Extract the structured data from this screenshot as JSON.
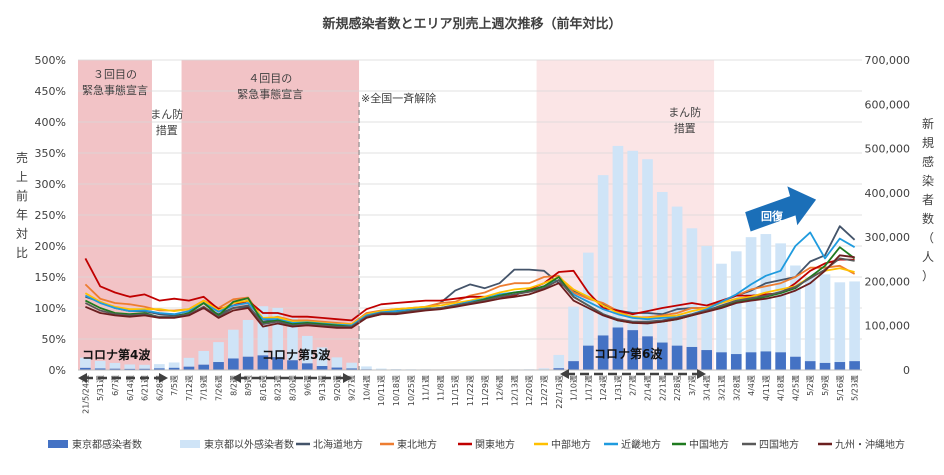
{
  "chart_data": {
    "type": "bar+line",
    "title": "新規感染者数とエリア別売上週次推移（前年対比）",
    "ylabel_left": "売上前年対比",
    "ylabel_right": "新規感染者数（人）",
    "yleft_range": [
      0,
      500
    ],
    "yleft_ticks": [
      "0%",
      "50%",
      "100%",
      "150%",
      "200%",
      "250%",
      "300%",
      "350%",
      "400%",
      "450%",
      "500%"
    ],
    "yright_range": [
      0,
      700000
    ],
    "yright_ticks": [
      "0",
      "100,000",
      "200,000",
      "300,000",
      "400,000",
      "500,000",
      "600,000",
      "700,000"
    ],
    "x_labels": [
      "21/5/24週",
      "5/31週",
      "6/7週",
      "6/14週",
      "6/21週",
      "6/28週",
      "7/5週",
      "7/12週",
      "7/19週",
      "7/26週",
      "8/2週",
      "8/9週",
      "8/16週",
      "8/23週",
      "8/30週",
      "9/6週",
      "9/13週",
      "9/20週",
      "9/27週",
      "10/4週",
      "10/11週",
      "10/18週",
      "10/25週",
      "11/1週",
      "11/8週",
      "11/15週",
      "11/22週",
      "11/29週",
      "12/6週",
      "12/13週",
      "12/20週",
      "12/27週",
      "22/1/3週",
      "1/10週",
      "1/17週",
      "1/24週",
      "1/31週",
      "2/7週",
      "2/14週",
      "2/21週",
      "2/28週",
      "3/7週",
      "3/14週",
      "3/21週",
      "3/28週",
      "4/4週",
      "4/11週",
      "4/18週",
      "4/25週",
      "5/2週",
      "5/9週",
      "5/16週",
      "5/23週"
    ],
    "bar_series": [
      {
        "name": "東京都感染者数",
        "color": "#4472c4",
        "values": [
          4800,
          3500,
          2900,
          2500,
          2700,
          3800,
          5000,
          7500,
          12000,
          18000,
          26000,
          30000,
          33000,
          29000,
          22000,
          15000,
          9000,
          5500,
          3500,
          1600,
          600,
          300,
          200,
          150,
          150,
          150,
          150,
          150,
          150,
          200,
          300,
          800,
          4000,
          20000,
          55000,
          78000,
          96000,
          90000,
          76000,
          62000,
          55000,
          52000,
          45000,
          40000,
          36000,
          40000,
          42000,
          40000,
          30000,
          20000,
          16000,
          18000,
          20000
        ]
      },
      {
        "name": "東京都以外感染者数",
        "color": "#cfe4f7",
        "values": [
          23000,
          17000,
          13000,
          10000,
          9000,
          9500,
          12000,
          20000,
          31000,
          45000,
          65000,
          83000,
          111000,
          111000,
          96000,
          62000,
          42000,
          23000,
          13000,
          6500,
          2600,
          1800,
          1400,
          1200,
          1000,
          1000,
          1000,
          1000,
          1100,
          1200,
          1400,
          3000,
          30000,
          123000,
          210000,
          362000,
          410000,
          405000,
          400000,
          340000,
          314000,
          268000,
          235000,
          200000,
          232000,
          260000,
          265000,
          246000,
          206000,
          190000,
          200000,
          180000,
          180000
        ]
      }
    ],
    "line_series": [
      {
        "name": "北海道地方",
        "color": "#44546a",
        "values": [
          118,
          110,
          100,
          95,
          95,
          90,
          88,
          90,
          100,
          90,
          100,
          102,
          78,
          82,
          75,
          78,
          72,
          70,
          72,
          88,
          95,
          95,
          98,
          100,
          108,
          128,
          138,
          132,
          140,
          162,
          162,
          160,
          140,
          128,
          118,
          105,
          96,
          92,
          92,
          90,
          98,
          100,
          100,
          110,
          120,
          128,
          140,
          145,
          150,
          175,
          185,
          232,
          210
        ]
      },
      {
        "name": "東北地方",
        "color": "#ed7d31",
        "values": [
          138,
          115,
          108,
          106,
          102,
          96,
          96,
          98,
          112,
          100,
          114,
          117,
          82,
          86,
          80,
          80,
          78,
          76,
          74,
          92,
          96,
          98,
          100,
          102,
          108,
          110,
          120,
          125,
          135,
          140,
          140,
          150,
          152,
          125,
          115,
          108,
          95,
          85,
          85,
          88,
          92,
          100,
          100,
          110,
          120,
          130,
          135,
          140,
          150,
          165,
          165,
          168,
          155
        ]
      },
      {
        "name": "関東地方",
        "color": "#c00000",
        "values": [
          180,
          135,
          125,
          118,
          122,
          112,
          115,
          112,
          118,
          98,
          104,
          112,
          92,
          92,
          86,
          86,
          84,
          82,
          80,
          98,
          106,
          108,
          110,
          112,
          112,
          115,
          118,
          118,
          118,
          120,
          130,
          140,
          158,
          160,
          125,
          100,
          96,
          90,
          95,
          100,
          104,
          108,
          104,
          112,
          120,
          120,
          122,
          124,
          140,
          160,
          172,
          178,
          178
        ]
      },
      {
        "name": "中部地方",
        "color": "#ffc000",
        "values": [
          124,
          110,
          102,
          98,
          98,
          98,
          95,
          98,
          112,
          96,
          108,
          112,
          84,
          85,
          78,
          78,
          76,
          74,
          74,
          90,
          95,
          98,
          100,
          102,
          104,
          108,
          112,
          118,
          125,
          130,
          132,
          140,
          150,
          130,
          118,
          104,
          92,
          86,
          84,
          86,
          88,
          95,
          100,
          108,
          115,
          118,
          125,
          130,
          135,
          150,
          160,
          164,
          158
        ]
      },
      {
        "name": "近畿地方",
        "color": "#1f9bde",
        "values": [
          120,
          108,
          100,
          95,
          96,
          92,
          90,
          95,
          108,
          94,
          104,
          108,
          82,
          82,
          76,
          77,
          75,
          73,
          72,
          88,
          93,
          95,
          97,
          99,
          100,
          105,
          110,
          115,
          122,
          125,
          128,
          135,
          145,
          122,
          110,
          98,
          90,
          84,
          82,
          84,
          85,
          90,
          98,
          110,
          122,
          138,
          152,
          160,
          200,
          222,
          180,
          212,
          198
        ]
      },
      {
        "name": "中国地方",
        "color": "#1f7a1f",
        "values": [
          112,
          100,
          92,
          90,
          92,
          85,
          86,
          92,
          108,
          88,
          110,
          116,
          76,
          80,
          74,
          76,
          74,
          72,
          70,
          85,
          90,
          92,
          95,
          98,
          100,
          104,
          108,
          114,
          120,
          125,
          128,
          135,
          150,
          118,
          104,
          90,
          80,
          76,
          76,
          78,
          82,
          88,
          95,
          102,
          110,
          114,
          118,
          124,
          132,
          150,
          168,
          198,
          180
        ]
      },
      {
        "name": "四国地方",
        "color": "#595959",
        "values": [
          108,
          96,
          90,
          88,
          90,
          86,
          86,
          90,
          102,
          86,
          100,
          104,
          74,
          78,
          72,
          74,
          72,
          70,
          70,
          86,
          92,
          92,
          95,
          98,
          100,
          104,
          108,
          112,
          118,
          122,
          126,
          132,
          145,
          118,
          104,
          90,
          82,
          78,
          78,
          80,
          84,
          90,
          96,
          104,
          112,
          116,
          120,
          126,
          134,
          148,
          162,
          180,
          176
        ]
      },
      {
        "name": "九州・沖縄地方",
        "color": "#6b1f1f",
        "values": [
          102,
          92,
          88,
          86,
          88,
          84,
          84,
          88,
          100,
          84,
          96,
          100,
          70,
          75,
          70,
          72,
          70,
          68,
          68,
          84,
          90,
          90,
          93,
          96,
          98,
          102,
          106,
          110,
          115,
          118,
          122,
          130,
          140,
          112,
          100,
          88,
          80,
          76,
          75,
          78,
          82,
          88,
          94,
          100,
          108,
          112,
          115,
          120,
          128,
          140,
          160,
          185,
          182
        ]
      }
    ],
    "shaded_periods": [
      {
        "start": "21/5/24週",
        "end": "6/21週",
        "label_lines": [
          "３回目の",
          "緊急事態宣言"
        ]
      },
      {
        "start": "7/12週",
        "end": "9/27週",
        "label_lines": [
          "４回目の",
          "緊急事態宣言"
        ]
      },
      {
        "start": "12/27週",
        "end": "3/14週",
        "label_lines": [
          "まん防",
          "措置"
        ]
      }
    ],
    "annotations": {
      "manbo_summer": [
        "まん防",
        "措置"
      ],
      "lifted": "※全国一斉解除",
      "wave4": "コロナ第4波",
      "wave5": "コロナ第5波",
      "wave6": "コロナ第6波",
      "recovery": "回復"
    },
    "legend_position": "bottom"
  }
}
